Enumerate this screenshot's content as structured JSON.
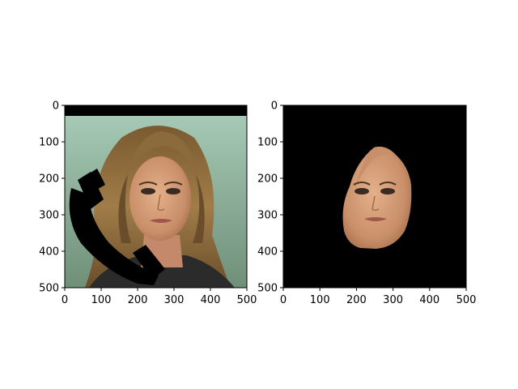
{
  "figure": {
    "panels": [
      {
        "id": "left",
        "image_description_name": "portrait-with-phone-occluder",
        "x_ticks": [
          "0",
          "100",
          "200",
          "300",
          "400",
          "500"
        ],
        "y_ticks": [
          "0",
          "100",
          "200",
          "300",
          "400",
          "500"
        ]
      },
      {
        "id": "right",
        "image_description_name": "segmented-face-mask",
        "x_ticks": [
          "0",
          "100",
          "200",
          "300",
          "400",
          "500"
        ],
        "y_ticks": [
          "0",
          "100",
          "200",
          "300",
          "400",
          "500"
        ]
      }
    ],
    "colors": {
      "background_top": "#a9cdb9",
      "background_bottom": "#6f8f78",
      "hair": "#8b6b3c",
      "hair_dark": "#4a3520",
      "skin": "#d9a47f",
      "skin_shadow": "#b77d5b",
      "occluder": "#000000",
      "mask_background": "#000000",
      "shirt": "#2b2b2b"
    }
  }
}
